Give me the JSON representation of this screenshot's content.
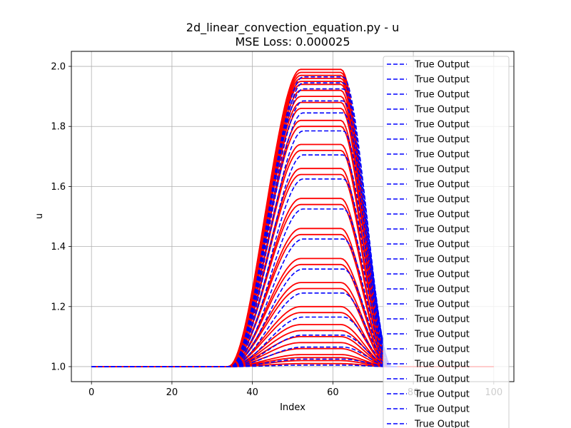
{
  "chart_data": {
    "type": "line",
    "title_line1": "2d_linear_convection_equation.py - u",
    "title_line2": "MSE Loss: 0.000025",
    "xlabel": "Index",
    "ylabel": "u",
    "xlim": [
      -5,
      105
    ],
    "ylim": [
      0.95,
      2.05
    ],
    "x_ticks": [
      0,
      20,
      40,
      60,
      80,
      100
    ],
    "y_ticks": [
      1.0,
      1.2,
      1.4,
      1.6,
      1.8,
      2.0
    ],
    "x_tick_labels": [
      "0",
      "20",
      "40",
      "60",
      "80",
      "100"
    ],
    "y_tick_labels": [
      "1.0",
      "1.2",
      "1.4",
      "1.6",
      "1.8",
      "2.0"
    ],
    "grid": true,
    "legend_position": "top-right",
    "legend_label": "True Output",
    "legend_count": 25,
    "series_true_color": "#0000ff",
    "series_pred_color": "#ff0000",
    "profile_plateau_center_x": 58,
    "profile_rise_range_x": [
      34,
      52
    ],
    "profile_fall_range_x": [
      62,
      74
    ],
    "profile_baseline": 1.0,
    "profile_peaks": [
      1.99,
      1.98,
      1.97,
      1.96,
      1.95,
      1.94,
      1.92,
      1.9,
      1.88,
      1.86,
      1.82,
      1.8,
      1.74,
      1.72,
      1.66,
      1.64,
      1.56,
      1.54,
      1.46,
      1.44,
      1.36,
      1.34,
      1.28,
      1.26,
      1.2,
      1.18,
      1.14,
      1.12,
      1.1,
      1.08,
      1.06,
      1.04,
      1.03,
      1.02,
      1.01
    ]
  }
}
